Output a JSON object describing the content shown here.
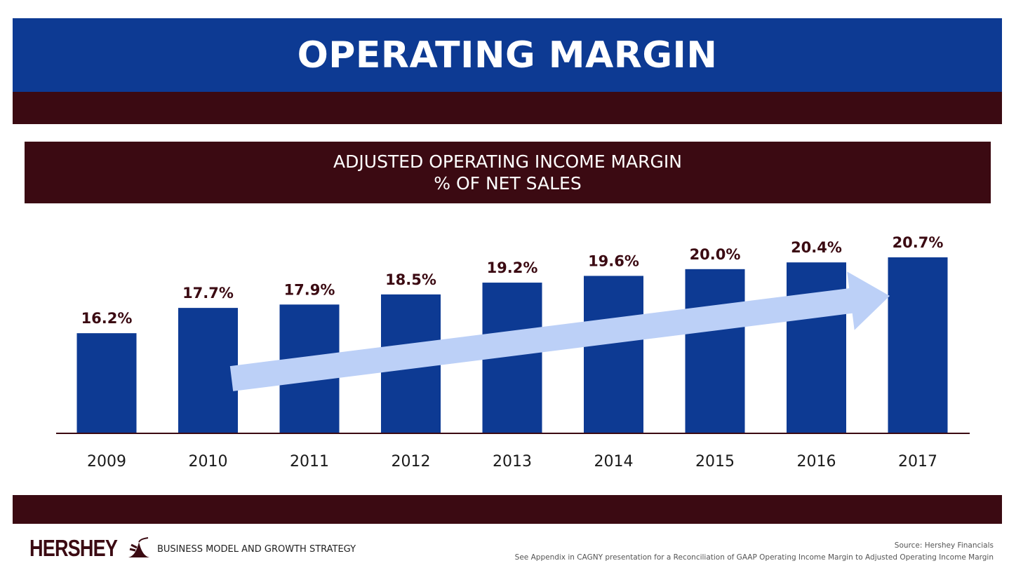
{
  "header": {
    "title": "OPERATING MARGIN"
  },
  "chart_data": {
    "type": "bar",
    "title": "ADJUSTED OPERATING INCOME MARGIN",
    "subtitle": "% OF NET SALES",
    "categories": [
      "2009",
      "2010",
      "2011",
      "2012",
      "2013",
      "2014",
      "2015",
      "2016",
      "2017"
    ],
    "values": [
      16.2,
      17.7,
      17.9,
      18.5,
      19.2,
      19.6,
      20.0,
      20.4,
      20.7
    ],
    "value_labels": [
      "16.2%",
      "17.7%",
      "17.9%",
      "18.5%",
      "19.2%",
      "19.6%",
      "20.0%",
      "20.4%",
      "20.7%"
    ],
    "xlabel": "",
    "ylabel": "",
    "ylim": [
      10.3,
      20.7
    ],
    "grid": false,
    "bar_color": "#0d3a93",
    "trend_arrow_color": "#bcd0f7",
    "label_color": "#3b0a12"
  },
  "footer": {
    "brand": "HERSHEY",
    "strategy": "BUSINESS MODEL AND GROWTH STRATEGY",
    "source": "Source: Hershey Financials",
    "note": "See Appendix in CAGNY presentation for a Reconciliation of GAAP Operating Income Margin to Adjusted Operating Income Margin"
  },
  "colors": {
    "header_blue": "#0d3a93",
    "maroon": "#3b0a12"
  }
}
